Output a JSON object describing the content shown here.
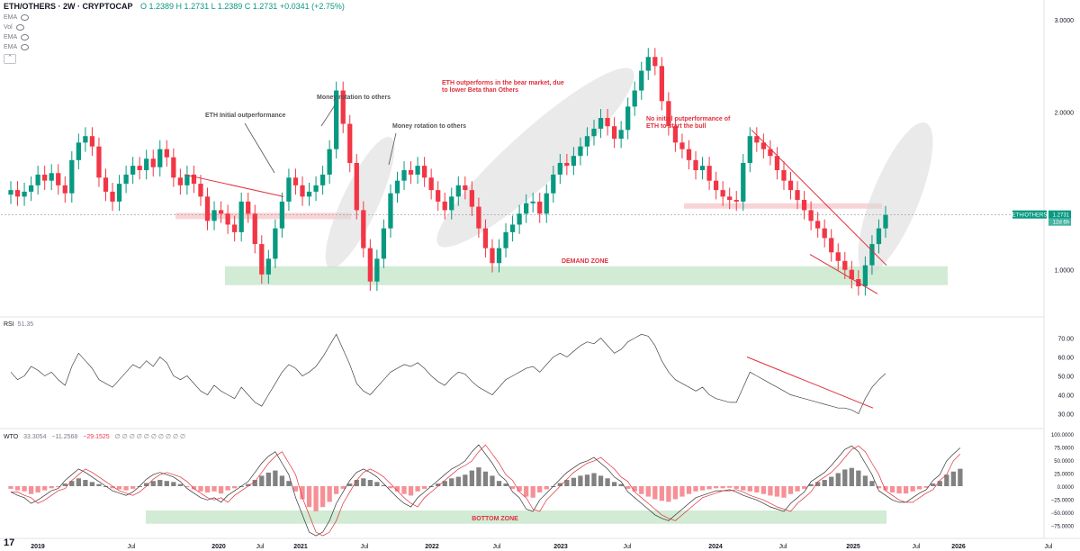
{
  "header": {
    "symbol": "ETH/OTHERS · 2W · CRYPTOCAP",
    "ohlc": "O 1.2389  H 1.2731  L 1.2389  C 1.2731  +0.0341 (+2.75%)",
    "indicators": [
      "EMA",
      "Vol",
      "EMA",
      "EMA"
    ]
  },
  "colors": {
    "up": "#089981",
    "down": "#f23645",
    "annotation": "#e0303c",
    "demand_zone": "#c8e6c9",
    "ellipse": "#d9d9d9"
  },
  "price_pane": {
    "last_label": "ETH/OTHERS",
    "last_value": "1.2731",
    "countdown": "12d 6h",
    "y_ticks": [
      "3.0000",
      "2.0000",
      "1.0000"
    ],
    "annotations": {
      "eth_initial": "ETH Initial outperformance",
      "money_rotation_1": "Money rotation to others",
      "money_rotation_2": "Money rotation to others",
      "bear_market": "ETH outperforms in the bear market, due to lower Beta than Others",
      "no_initial": "No initial outperformance of ETH to start the bull",
      "demand_zone": "DEMAND ZONE"
    }
  },
  "rsi_pane": {
    "label": "RSI",
    "value": "51.35",
    "y_ticks": [
      "70.00",
      "60.00",
      "50.00",
      "40.00",
      "30.00"
    ]
  },
  "wto_pane": {
    "label": "WTO",
    "v1": "33.3054",
    "v2": "−11.2568",
    "v3": "−29.1525",
    "extra": "∅ ∅ ∅ ∅ ∅ ∅ ∅ ∅ ∅ ∅",
    "y_ticks": [
      "100.0000",
      "75.0000",
      "50.0000",
      "25.0000",
      "0.0000",
      "−25.0000",
      "−50.0000",
      "−75.0000"
    ],
    "bottom_zone": "BOTTOM ZONE"
  },
  "x_axis": [
    "2019",
    "Jul",
    "2020",
    "Jul",
    "2021",
    "Jul",
    "2022",
    "Jul",
    "2023",
    "Jul",
    "2024",
    "Jul",
    "2025",
    "Jul",
    "2026",
    "Jul"
  ],
  "chart_data": [
    {
      "type": "candlestick",
      "title": "ETH/OTHERS · 2W · CRYPTOCAP",
      "scale": "log",
      "ylim": [
        0.9,
        3.0
      ],
      "series": [
        {
          "values": [
            1.42,
            1.38,
            1.41,
            1.45,
            1.52,
            1.48,
            1.53,
            1.45,
            1.4,
            1.62,
            1.75,
            1.8,
            1.72,
            1.5,
            1.41,
            1.35,
            1.46,
            1.52,
            1.58,
            1.55,
            1.63,
            1.57,
            1.7,
            1.64,
            1.5,
            1.45,
            1.52,
            1.46,
            1.38,
            1.24,
            1.3,
            1.28,
            1.22,
            1.18,
            1.35,
            1.28,
            1.12,
            0.98,
            1.05,
            1.2,
            1.35,
            1.5,
            1.45,
            1.38,
            1.41,
            1.45,
            1.52,
            1.7,
            2.2,
            1.9,
            1.6,
            1.3,
            1.1,
            0.95,
            1.05,
            1.2,
            1.4,
            1.48,
            1.55,
            1.52,
            1.58,
            1.5,
            1.42,
            1.35,
            1.3,
            1.38,
            1.45,
            1.42,
            1.32,
            1.2,
            1.1,
            1.03,
            1.1,
            1.18,
            1.22,
            1.28,
            1.34,
            1.35,
            1.28,
            1.4,
            1.52,
            1.6,
            1.58,
            1.65,
            1.72,
            1.8,
            1.86,
            1.95,
            1.88,
            1.78,
            1.85,
            2.05,
            2.2,
            2.4,
            2.55,
            2.45,
            2.1,
            1.88,
            1.75,
            1.7,
            1.62,
            1.55,
            1.58,
            1.48,
            1.42,
            1.38,
            1.36,
            1.35,
            1.6,
            1.8,
            1.75,
            1.7,
            1.65,
            1.55,
            1.48,
            1.42,
            1.36,
            1.3,
            1.24,
            1.2,
            1.15,
            1.08,
            1.04,
            1.0,
            0.96,
            0.93,
            1.02,
            1.12,
            1.2,
            1.2731
          ]
        }
      ]
    },
    {
      "type": "line",
      "title": "RSI",
      "ylim": [
        25,
        75
      ],
      "series": [
        {
          "name": "RSI",
          "values": [
            52,
            48,
            50,
            55,
            53,
            50,
            52,
            48,
            45,
            55,
            62,
            58,
            54,
            48,
            46,
            44,
            48,
            52,
            56,
            54,
            58,
            55,
            60,
            57,
            50,
            48,
            50,
            46,
            42,
            40,
            45,
            42,
            40,
            38,
            44,
            40,
            36,
            34,
            40,
            46,
            52,
            56,
            54,
            50,
            52,
            55,
            60,
            66,
            72,
            64,
            56,
            46,
            42,
            40,
            44,
            48,
            52,
            54,
            56,
            55,
            57,
            54,
            50,
            47,
            45,
            49,
            52,
            51,
            47,
            44,
            42,
            40,
            44,
            48,
            50,
            52,
            54,
            55,
            52,
            56,
            60,
            62,
            60,
            63,
            66,
            68,
            67,
            70,
            66,
            62,
            64,
            68,
            70,
            72,
            71,
            66,
            58,
            52,
            48,
            46,
            44,
            42,
            44,
            40,
            38,
            37,
            36,
            36,
            44,
            52,
            50,
            48,
            46,
            44,
            42,
            40,
            39,
            38,
            37,
            36,
            35,
            34,
            33,
            33,
            32,
            30,
            38,
            44,
            48,
            51.35
          ]
        }
      ]
    },
    {
      "type": "bar",
      "title": "WTO",
      "ylim": [
        -100,
        100
      ],
      "series": [
        {
          "name": "histogram",
          "values": [
            -5,
            -8,
            -10,
            -15,
            -12,
            -8,
            -4,
            -2,
            5,
            10,
            15,
            12,
            8,
            4,
            0,
            -4,
            -6,
            -8,
            -5,
            0,
            6,
            10,
            12,
            10,
            8,
            4,
            -2,
            -6,
            -10,
            -12,
            -10,
            -14,
            -8,
            -4,
            0,
            4,
            12,
            20,
            26,
            30,
            20,
            10,
            -10,
            -25,
            -40,
            -48,
            -40,
            -30,
            -15,
            -5,
            5,
            12,
            15,
            12,
            8,
            2,
            -4,
            -10,
            -15,
            -18,
            -10,
            -5,
            0,
            5,
            10,
            15,
            18,
            22,
            30,
            36,
            28,
            20,
            10,
            5,
            -5,
            -10,
            -20,
            -22,
            -12,
            -6,
            0,
            6,
            12,
            16,
            20,
            22,
            25,
            20,
            15,
            8,
            4,
            -5,
            -10,
            -15,
            -20,
            -25,
            -28,
            -30,
            -25,
            -20,
            -15,
            -10,
            -8,
            -6,
            -4,
            -4,
            -3,
            -5,
            -8,
            -10,
            -12,
            -15,
            -18,
            -20,
            -22,
            -15,
            -10,
            -5,
            4,
            8,
            12,
            18,
            25,
            32,
            35,
            30,
            20,
            10,
            -4,
            -8,
            -12,
            -14,
            -14,
            -10,
            -6,
            -3,
            5,
            10,
            22,
            28,
            33.3054
          ]
        }
      ]
    }
  ]
}
